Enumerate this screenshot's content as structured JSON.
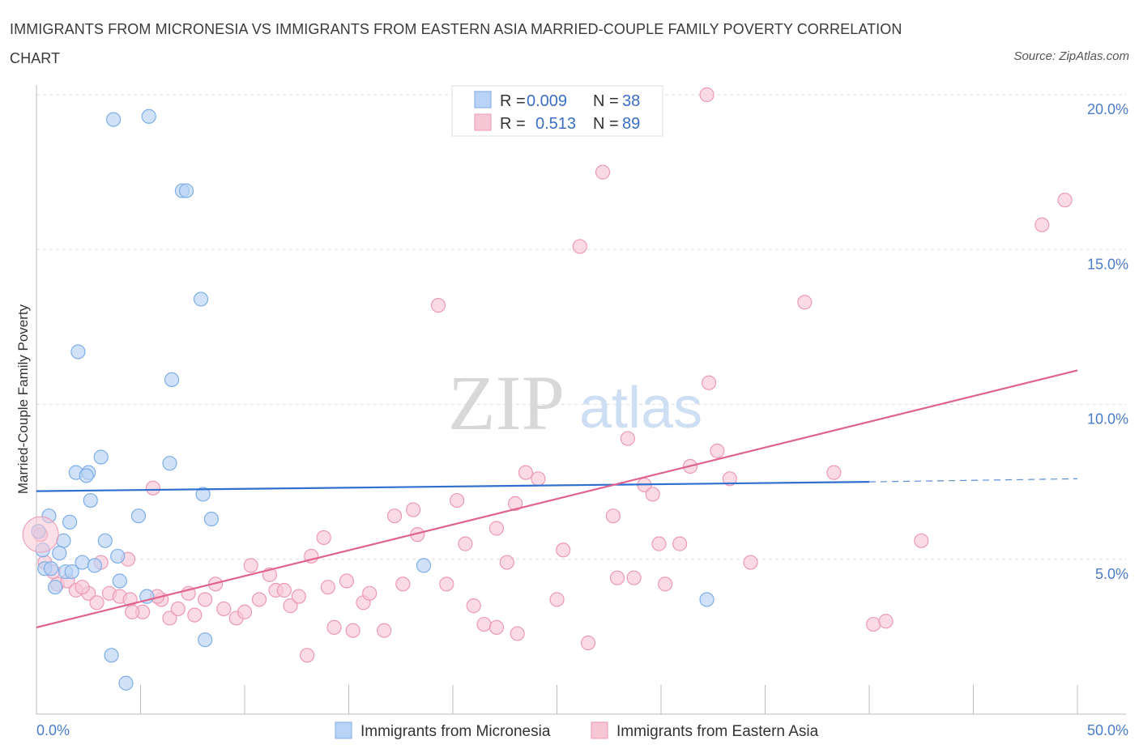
{
  "title": "IMMIGRANTS FROM MICRONESIA VS IMMIGRANTS FROM EASTERN ASIA MARRIED-COUPLE FAMILY POVERTY CORRELATION CHART",
  "source": "Source: ZipAtlas.com",
  "watermark": {
    "zip": "ZIP",
    "atlas": "atlas"
  },
  "legend_top": {
    "rows": [
      {
        "r_label": "R =",
        "r_value": "0.009",
        "n_label": "N =",
        "n_value": "38"
      },
      {
        "r_label": "R =",
        "r_value": "0.513",
        "n_label": "N =",
        "n_value": "89"
      }
    ]
  },
  "legend_bottom": {
    "items": [
      "Immigrants from Micronesia",
      "Immigrants from Eastern Asia"
    ]
  },
  "colors": {
    "blue_fill": "#b8d3f5",
    "blue_stroke": "#7eaee8",
    "blue_line": "#2f6fcf",
    "pink_fill": "#f7c6d5",
    "pink_stroke": "#ec9ab4",
    "pink_line": "#e0628f",
    "grid": "#dddddd",
    "tick_text": "#4a7cc9"
  },
  "chart_data": {
    "type": "scatter",
    "title": "IMMIGRANTS FROM MICRONESIA VS IMMIGRANTS FROM EASTERN ASIA MARRIED-COUPLE FAMILY POVERTY CORRELATION CHART",
    "xlabel": "",
    "ylabel": "Married-Couple Family Poverty",
    "xlim": [
      0,
      50
    ],
    "ylim": [
      0,
      20
    ],
    "x_tick_labels": [
      "0.0%",
      "50.0%"
    ],
    "y_ticks": [
      5,
      10,
      15,
      20
    ],
    "y_tick_labels": [
      "5.0%",
      "10.0%",
      "15.0%",
      "20.0%"
    ],
    "grid": true,
    "legend_placement": "top-center",
    "series": [
      {
        "name": "Immigrants from Micronesia",
        "color": "#b8d3f5",
        "trend": {
          "x": [
            0,
            40
          ],
          "y": [
            7.2,
            7.5
          ],
          "dashed_to_x": 50,
          "dashed_to_y": 7.6
        },
        "points": [
          [
            3.7,
            19.2
          ],
          [
            5.4,
            19.3
          ],
          [
            7.0,
            16.9
          ],
          [
            7.2,
            16.9
          ],
          [
            7.9,
            13.4
          ],
          [
            2.0,
            11.7
          ],
          [
            6.5,
            10.8
          ],
          [
            3.1,
            8.3
          ],
          [
            6.4,
            8.1
          ],
          [
            1.9,
            7.8
          ],
          [
            2.5,
            7.8
          ],
          [
            2.4,
            7.7
          ],
          [
            8.0,
            7.1
          ],
          [
            2.6,
            6.9
          ],
          [
            0.6,
            6.4
          ],
          [
            4.9,
            6.4
          ],
          [
            8.4,
            6.3
          ],
          [
            1.6,
            6.2
          ],
          [
            0.1,
            5.9
          ],
          [
            1.3,
            5.6
          ],
          [
            3.3,
            5.6
          ],
          [
            0.3,
            5.3
          ],
          [
            1.1,
            5.2
          ],
          [
            3.9,
            5.1
          ],
          [
            2.2,
            4.9
          ],
          [
            2.8,
            4.8
          ],
          [
            18.6,
            4.8
          ],
          [
            0.4,
            4.7
          ],
          [
            0.7,
            4.7
          ],
          [
            1.4,
            4.6
          ],
          [
            1.7,
            4.6
          ],
          [
            4.0,
            4.3
          ],
          [
            0.9,
            4.1
          ],
          [
            5.3,
            3.8
          ],
          [
            32.2,
            3.7
          ],
          [
            8.1,
            2.4
          ],
          [
            3.6,
            1.9
          ],
          [
            4.3,
            1.0
          ]
        ]
      },
      {
        "name": "Immigrants from Eastern Asia",
        "color": "#f7c6d5",
        "trend": {
          "x": [
            0,
            50
          ],
          "y": [
            2.8,
            11.1
          ]
        },
        "points": [
          [
            32.2,
            20.0
          ],
          [
            27.2,
            17.5
          ],
          [
            49.4,
            16.6
          ],
          [
            48.3,
            15.8
          ],
          [
            26.1,
            15.1
          ],
          [
            36.9,
            13.3
          ],
          [
            19.3,
            13.2
          ],
          [
            32.3,
            10.7
          ],
          [
            28.4,
            8.9
          ],
          [
            32.7,
            8.5
          ],
          [
            31.4,
            8.0
          ],
          [
            23.5,
            7.8
          ],
          [
            38.3,
            7.8
          ],
          [
            24.1,
            7.6
          ],
          [
            33.3,
            7.6
          ],
          [
            29.2,
            7.4
          ],
          [
            5.6,
            7.3
          ],
          [
            29.6,
            7.1
          ],
          [
            20.2,
            6.9
          ],
          [
            23.0,
            6.8
          ],
          [
            18.1,
            6.6
          ],
          [
            17.2,
            6.4
          ],
          [
            27.7,
            6.4
          ],
          [
            22.1,
            6.0
          ],
          [
            18.3,
            5.8
          ],
          [
            13.8,
            5.7
          ],
          [
            20.6,
            5.5
          ],
          [
            29.9,
            5.5
          ],
          [
            30.9,
            5.5
          ],
          [
            42.5,
            5.6
          ],
          [
            25.3,
            5.3
          ],
          [
            13.2,
            5.1
          ],
          [
            4.4,
            5.0
          ],
          [
            34.3,
            4.9
          ],
          [
            22.6,
            4.9
          ],
          [
            0.2,
            5.8
          ],
          [
            0.4,
            4.9
          ],
          [
            1.0,
            4.2
          ],
          [
            1.5,
            4.3
          ],
          [
            1.9,
            4.0
          ],
          [
            2.5,
            3.9
          ],
          [
            2.9,
            3.6
          ],
          [
            3.5,
            3.9
          ],
          [
            4.0,
            3.8
          ],
          [
            4.5,
            3.7
          ],
          [
            5.1,
            3.3
          ],
          [
            6.0,
            3.7
          ],
          [
            6.4,
            3.1
          ],
          [
            6.8,
            3.4
          ],
          [
            7.3,
            3.9
          ],
          [
            7.6,
            3.2
          ],
          [
            8.1,
            3.7
          ],
          [
            8.6,
            4.2
          ],
          [
            9.0,
            3.4
          ],
          [
            9.6,
            3.1
          ],
          [
            10.0,
            3.3
          ],
          [
            10.7,
            3.7
          ],
          [
            11.5,
            4.0
          ],
          [
            11.9,
            4.0
          ],
          [
            12.2,
            3.5
          ],
          [
            10.3,
            4.8
          ],
          [
            11.2,
            4.5
          ],
          [
            14.0,
            4.1
          ],
          [
            14.9,
            4.3
          ],
          [
            15.7,
            3.6
          ],
          [
            16.0,
            3.9
          ],
          [
            17.6,
            4.2
          ],
          [
            14.3,
            2.8
          ],
          [
            15.2,
            2.7
          ],
          [
            16.7,
            2.7
          ],
          [
            13.0,
            1.9
          ],
          [
            19.7,
            4.2
          ],
          [
            21.0,
            3.5
          ],
          [
            21.5,
            2.9
          ],
          [
            22.1,
            2.8
          ],
          [
            23.1,
            2.6
          ],
          [
            25.0,
            3.7
          ],
          [
            26.5,
            2.3
          ],
          [
            27.9,
            4.4
          ],
          [
            28.7,
            4.4
          ],
          [
            30.2,
            4.2
          ],
          [
            40.2,
            2.9
          ],
          [
            40.8,
            3.0
          ],
          [
            4.6,
            3.3
          ],
          [
            3.1,
            4.9
          ],
          [
            2.2,
            4.1
          ],
          [
            0.8,
            4.6
          ],
          [
            5.8,
            3.8
          ],
          [
            12.6,
            3.8
          ]
        ]
      }
    ]
  }
}
